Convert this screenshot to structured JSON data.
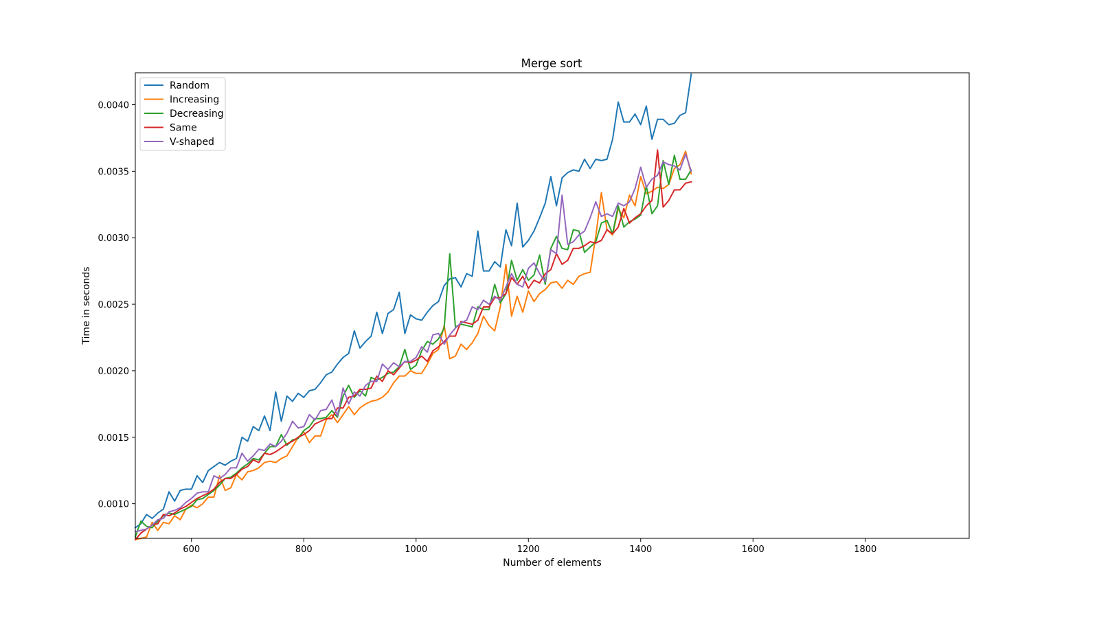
{
  "chart_data": {
    "type": "line",
    "title": "Merge sort",
    "xlabel": "Number of elements",
    "ylabel": "Time in seconds",
    "xlim": [
      500,
      1985
    ],
    "ylim": [
      0.00074,
      0.00424
    ],
    "xticks": [
      600,
      800,
      1000,
      1200,
      1400,
      1600,
      1800
    ],
    "xtick_labels": [
      "600",
      "800",
      "1000",
      "1200",
      "1400",
      "1600",
      "1800"
    ],
    "yticks": [
      0.001,
      0.0015,
      0.002,
      0.0025,
      0.003,
      0.0035,
      0.004
    ],
    "ytick_labels": [
      "0.0010",
      "0.0015",
      "0.0020",
      "0.0025",
      "0.0030",
      "0.0035",
      "0.0040"
    ],
    "grid": false,
    "legend_position": "top-left",
    "x_start": 500,
    "x_step": 10,
    "series": [
      {
        "name": "Random",
        "color": "#1f77b4",
        "values": [
          0.00082,
          0.00085,
          0.00092,
          0.00089,
          0.00093,
          0.00096,
          0.00109,
          0.00102,
          0.0011,
          0.00111,
          0.00111,
          0.00121,
          0.00116,
          0.00125,
          0.00128,
          0.00131,
          0.00129,
          0.00132,
          0.00134,
          0.0015,
          0.00147,
          0.00158,
          0.00155,
          0.00166,
          0.00155,
          0.00184,
          0.00162,
          0.00181,
          0.00177,
          0.00183,
          0.0018,
          0.00185,
          0.00186,
          0.00191,
          0.00197,
          0.00199,
          0.00205,
          0.0021,
          0.00213,
          0.0023,
          0.00217,
          0.00222,
          0.00226,
          0.00244,
          0.00228,
          0.00243,
          0.00246,
          0.00259,
          0.00228,
          0.00242,
          0.00239,
          0.00238,
          0.00244,
          0.00249,
          0.00252,
          0.00264,
          0.00269,
          0.0027,
          0.00263,
          0.00273,
          0.00271,
          0.00305,
          0.00275,
          0.00275,
          0.00282,
          0.00278,
          0.00306,
          0.00294,
          0.00326,
          0.00293,
          0.00298,
          0.00305,
          0.00315,
          0.00326,
          0.00346,
          0.00324,
          0.00345,
          0.00349,
          0.00351,
          0.0035,
          0.00359,
          0.00352,
          0.00359,
          0.00358,
          0.00359,
          0.00374,
          0.00402,
          0.00387,
          0.00387,
          0.00393,
          0.00385,
          0.00399,
          0.00374,
          0.00389,
          0.00389,
          0.00385,
          0.00386,
          0.00392,
          0.00394,
          0.00423
        ]
      },
      {
        "name": "Increasing",
        "color": "#ff7f0e",
        "values": [
          0.00073,
          0.00074,
          0.00075,
          0.00086,
          0.0008,
          0.00086,
          0.00085,
          0.00091,
          0.00088,
          0.00096,
          0.00099,
          0.00097,
          0.001,
          0.00105,
          0.00105,
          0.00121,
          0.0011,
          0.00112,
          0.00122,
          0.00118,
          0.00124,
          0.00125,
          0.00127,
          0.00131,
          0.00132,
          0.00131,
          0.00134,
          0.00136,
          0.00143,
          0.0015,
          0.00154,
          0.00146,
          0.00151,
          0.00151,
          0.00163,
          0.00167,
          0.00161,
          0.00167,
          0.00173,
          0.00167,
          0.00172,
          0.00175,
          0.00177,
          0.00178,
          0.0018,
          0.00184,
          0.00191,
          0.00196,
          0.00196,
          0.002,
          0.00198,
          0.00198,
          0.00205,
          0.00213,
          0.00216,
          0.00234,
          0.00209,
          0.00211,
          0.0022,
          0.00216,
          0.00221,
          0.00228,
          0.00241,
          0.00234,
          0.0023,
          0.00248,
          0.0028,
          0.00241,
          0.00256,
          0.00244,
          0.0026,
          0.00252,
          0.00258,
          0.00261,
          0.00266,
          0.00267,
          0.00262,
          0.00268,
          0.00265,
          0.00271,
          0.00273,
          0.00274,
          0.00301,
          0.00334,
          0.00306,
          0.00302,
          0.00322,
          0.00315,
          0.00332,
          0.00324,
          0.00346,
          0.00333,
          0.00335,
          0.00338,
          0.00337,
          0.0034,
          0.00352,
          0.00355,
          0.00365,
          0.00348
        ]
      },
      {
        "name": "Decreasing",
        "color": "#2ca02c",
        "values": [
          0.00075,
          0.00087,
          0.00083,
          0.00082,
          0.00087,
          0.00091,
          0.00093,
          0.00092,
          0.00094,
          0.00096,
          0.00098,
          0.00103,
          0.00104,
          0.00107,
          0.0011,
          0.00114,
          0.00119,
          0.0012,
          0.00123,
          0.00127,
          0.0013,
          0.00134,
          0.00133,
          0.00138,
          0.00143,
          0.00143,
          0.00152,
          0.00144,
          0.00148,
          0.00149,
          0.00155,
          0.00158,
          0.00164,
          0.00164,
          0.00165,
          0.0017,
          0.00165,
          0.00181,
          0.00189,
          0.0018,
          0.00185,
          0.00181,
          0.00195,
          0.00193,
          0.00195,
          0.00198,
          0.00199,
          0.00203,
          0.00216,
          0.00201,
          0.00204,
          0.00215,
          0.00222,
          0.0022,
          0.00224,
          0.00232,
          0.00288,
          0.00233,
          0.00235,
          0.00234,
          0.00233,
          0.00248,
          0.00246,
          0.00246,
          0.00265,
          0.00251,
          0.00258,
          0.00283,
          0.00268,
          0.00276,
          0.00268,
          0.00272,
          0.00287,
          0.00265,
          0.00292,
          0.00301,
          0.00292,
          0.00291,
          0.00306,
          0.00305,
          0.00289,
          0.00293,
          0.00297,
          0.00311,
          0.00313,
          0.00303,
          0.00324,
          0.00308,
          0.00312,
          0.00314,
          0.00317,
          0.00339,
          0.00318,
          0.00324,
          0.00358,
          0.0034,
          0.00362,
          0.00344,
          0.00344,
          0.00351
        ]
      },
      {
        "name": "Same",
        "color": "#d62728",
        "values": [
          0.00073,
          0.00078,
          0.00081,
          0.00084,
          0.00085,
          0.00092,
          0.00091,
          0.00093,
          0.00096,
          0.00098,
          0.00101,
          0.00104,
          0.00106,
          0.00108,
          0.00111,
          0.00116,
          0.00119,
          0.00119,
          0.00122,
          0.00126,
          0.00128,
          0.00133,
          0.00131,
          0.00138,
          0.00137,
          0.00139,
          0.00142,
          0.00145,
          0.00147,
          0.0015,
          0.00152,
          0.00155,
          0.0016,
          0.00162,
          0.00164,
          0.00164,
          0.00172,
          0.00172,
          0.0018,
          0.00181,
          0.00186,
          0.00186,
          0.00187,
          0.00196,
          0.00192,
          0.002,
          0.00197,
          0.00202,
          0.00207,
          0.00206,
          0.00208,
          0.00211,
          0.00207,
          0.00215,
          0.00218,
          0.00222,
          0.00226,
          0.00226,
          0.00237,
          0.00236,
          0.00235,
          0.00238,
          0.00248,
          0.00248,
          0.00255,
          0.00255,
          0.00258,
          0.0027,
          0.00265,
          0.00271,
          0.00262,
          0.00268,
          0.00266,
          0.00273,
          0.00276,
          0.00288,
          0.0028,
          0.00283,
          0.00292,
          0.00292,
          0.00294,
          0.00297,
          0.00296,
          0.00298,
          0.00306,
          0.00303,
          0.00308,
          0.00322,
          0.00311,
          0.00315,
          0.00318,
          0.00324,
          0.00328,
          0.00366,
          0.00323,
          0.00328,
          0.00336,
          0.00336,
          0.00341,
          0.00342
        ]
      },
      {
        "name": "V-shaped",
        "color": "#9467bd",
        "values": [
          0.00079,
          0.0008,
          0.00081,
          0.00084,
          0.00088,
          0.00089,
          0.00094,
          0.00095,
          0.00097,
          0.00101,
          0.00104,
          0.00108,
          0.00109,
          0.00109,
          0.00121,
          0.00119,
          0.00122,
          0.00127,
          0.00127,
          0.00138,
          0.00132,
          0.00136,
          0.00141,
          0.0014,
          0.00145,
          0.00143,
          0.00147,
          0.00153,
          0.00162,
          0.00157,
          0.00158,
          0.00167,
          0.00163,
          0.0017,
          0.00171,
          0.00178,
          0.00166,
          0.00187,
          0.00175,
          0.00184,
          0.00181,
          0.00189,
          0.00192,
          0.00192,
          0.00205,
          0.00201,
          0.00206,
          0.00203,
          0.00207,
          0.00207,
          0.0021,
          0.00218,
          0.00214,
          0.00227,
          0.00228,
          0.0022,
          0.00227,
          0.00232,
          0.00236,
          0.00238,
          0.00248,
          0.00246,
          0.00253,
          0.0025,
          0.00256,
          0.00253,
          0.00263,
          0.00273,
          0.00265,
          0.00263,
          0.00277,
          0.00281,
          0.00273,
          0.00267,
          0.00291,
          0.00288,
          0.00332,
          0.00295,
          0.00297,
          0.00302,
          0.00305,
          0.00315,
          0.00327,
          0.00316,
          0.00318,
          0.00316,
          0.00326,
          0.00324,
          0.00327,
          0.00337,
          0.00353,
          0.00338,
          0.00344,
          0.00347,
          0.00357,
          0.00355,
          0.00354,
          0.00351,
          0.00363,
          0.0035
        ]
      }
    ]
  }
}
